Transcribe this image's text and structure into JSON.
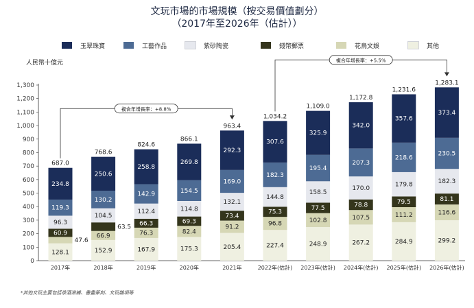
{
  "header": {
    "title_line1": "文玩市場的市場規模（按交易價值劃分）",
    "title_line2": "（2017年至2026年（估計））"
  },
  "unit_label": "人民幣十億元",
  "footnote": "*其他文玩主要包括茶酒滋補、書畫篆刻、文玩雜項等",
  "colors": {
    "jade_jewelry": "#1b2d59",
    "crafts": "#4d6b94",
    "zisha_ceramics": "#e6e8ee",
    "coins_stamps": "#34351c",
    "flowers_birds": "#d6d7b5",
    "others": "#eff0e1",
    "axis_text": "#333333"
  },
  "chart_data": {
    "type": "bar",
    "stacked": true,
    "categories": [
      "2017年",
      "2018年",
      "2019年",
      "2020年",
      "2021年",
      "2022年(估計)",
      "2023年(估計)",
      "2024年(估計)",
      "2025年(估計)",
      "2026年(估計)"
    ],
    "series": [
      {
        "name": "其他",
        "key": "others",
        "values": [
          128.1,
          152.9,
          167.9,
          175.3,
          205.4,
          227.4,
          248.9,
          267.2,
          284.9,
          299.2
        ]
      },
      {
        "name": "花鳥文娛",
        "key": "flowers_birds",
        "values": [
          47.6,
          66.9,
          76.3,
          82.4,
          91.2,
          96.8,
          102.8,
          107.5,
          111.2,
          116.6
        ]
      },
      {
        "name": "錢幣郵票",
        "key": "coins_stamps",
        "values": [
          60.9,
          63.5,
          66.3,
          69.3,
          73.4,
          75.3,
          77.5,
          78.8,
          79.5,
          81.1
        ]
      },
      {
        "name": "紫砂陶瓷",
        "key": "zisha_ceramics",
        "values": [
          96.3,
          104.5,
          112.4,
          114.8,
          132.1,
          144.8,
          158.5,
          170.0,
          179.8,
          182.3
        ]
      },
      {
        "name": "工藝作品",
        "key": "crafts",
        "values": [
          119.3,
          130.2,
          142.9,
          154.5,
          169.0,
          182.3,
          195.4,
          207.3,
          218.6,
          230.5
        ]
      },
      {
        "name": "玉翠珠寶",
        "key": "jade_jewelry",
        "values": [
          234.8,
          250.6,
          258.8,
          269.8,
          292.3,
          307.6,
          325.9,
          342.0,
          357.6,
          373.4
        ]
      }
    ],
    "totals": [
      "687.0",
      "768.6",
      "824.6",
      "866.1",
      "963.4",
      "1,034.2",
      "1,109.0",
      "1,172.8",
      "1,231.6",
      "1,283.1"
    ],
    "legend_order": [
      "jade_jewelry",
      "crafts",
      "zisha_ceramics",
      "coins_stamps",
      "flowers_birds",
      "others"
    ],
    "ylim": [
      0,
      1300
    ],
    "yticks": [
      "0",
      "100",
      "200",
      "300",
      "400",
      "500",
      "600",
      "700",
      "800",
      "900",
      "1,000",
      "1,100",
      "1,200",
      "1,300"
    ],
    "ylabel": "人民幣十億元",
    "annotations": [
      {
        "text": "複合年增長率：+8.8%",
        "from_index": 0,
        "to_index": 4
      },
      {
        "text": "複合年增長率：+5.5%",
        "from_index": 5,
        "to_index": 9
      }
    ],
    "grid": false,
    "legend_position": "top"
  }
}
